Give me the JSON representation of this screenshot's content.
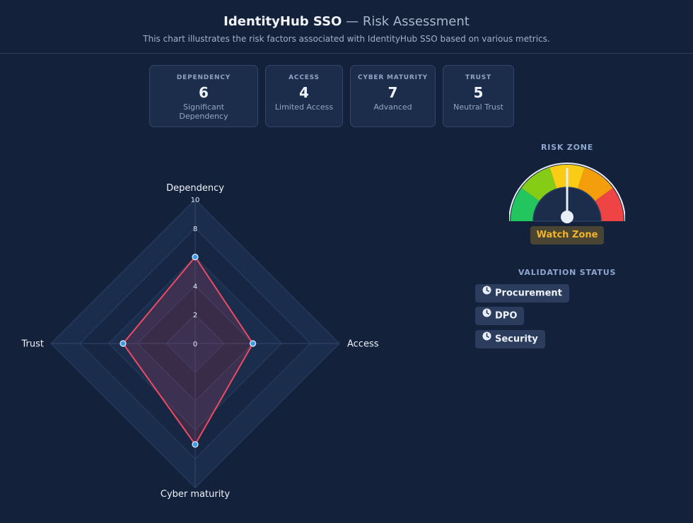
{
  "header": {
    "app_name": "IdentityHub SSO",
    "separator": "—",
    "page_name": "Risk Assessment",
    "subtitle": "This chart illustrates the risk factors associated with IdentityHub SSO based on various metrics."
  },
  "cards": [
    {
      "key": "DEPENDENCY",
      "value": "6",
      "desc": "Significant Dependency"
    },
    {
      "key": "ACCESS",
      "value": "4",
      "desc": "Limited Access"
    },
    {
      "key": "CYBER MATURITY",
      "value": "7",
      "desc": "Advanced"
    },
    {
      "key": "TRUST",
      "value": "5",
      "desc": "Neutral Trust"
    }
  ],
  "risk_zone": {
    "label": "RISK ZONE",
    "badge": "Watch Zone",
    "needle_fraction": 0.5,
    "segment_colors": [
      "#22c55e",
      "#84cc16",
      "#facc15",
      "#f59e0b",
      "#ef4444"
    ],
    "badge_color": "#f0b429"
  },
  "validation": {
    "label": "VALIDATION STATUS",
    "items": [
      {
        "icon": "clock-icon",
        "label": "Procurement"
      },
      {
        "icon": "clock-icon",
        "label": "DPO"
      },
      {
        "icon": "clock-icon",
        "label": "Security"
      }
    ]
  },
  "chart_data": {
    "type": "radar",
    "axes": [
      "Dependency",
      "Access",
      "Cyber maturity",
      "Trust"
    ],
    "values": [
      6,
      4,
      7,
      5
    ],
    "rlim": [
      0,
      10
    ],
    "ticks": [
      "0",
      "2",
      "4",
      "6",
      "8",
      "10"
    ],
    "line_color": "#ef4a64",
    "point_color": "#3d9be9"
  }
}
